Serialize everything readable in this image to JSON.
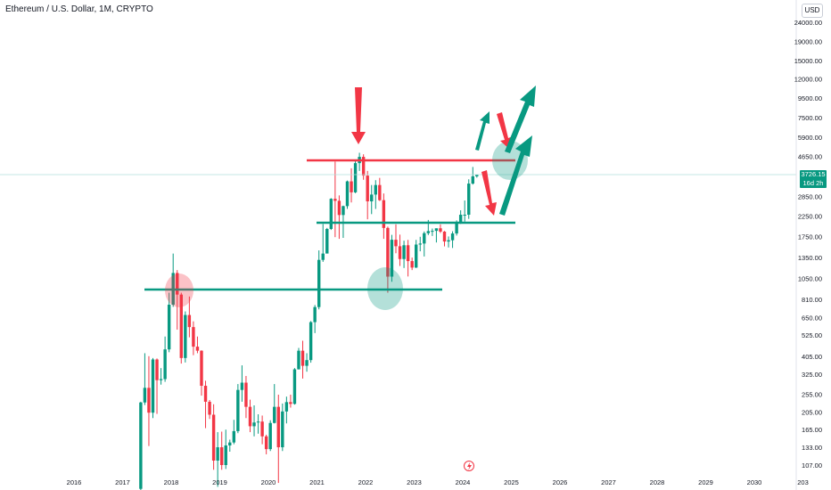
{
  "header": {
    "title": "Ethereum / U.S. Dollar, 1M, CRYPTO",
    "currency": "USD"
  },
  "price_tag": {
    "price": "3726.15",
    "countdown": "16d 2h"
  },
  "colors": {
    "up": "#089981",
    "down": "#f23645",
    "grid_line": "#2a8a8a",
    "axis_text": "#131722"
  },
  "chart_data": {
    "type": "candlestick",
    "title": "Ethereum / U.S. Dollar, 1M, CRYPTO",
    "y_scale": "log",
    "y_ticks": [
      "24000.00",
      "19000.00",
      "15000.00",
      "12000.00",
      "9500.00",
      "7500.00",
      "5900.00",
      "4650.00",
      "2850.00",
      "2250.00",
      "1750.00",
      "1350.00",
      "1050.00",
      "810.00",
      "650.00",
      "525.00",
      "405.00",
      "325.00",
      "255.00",
      "205.00",
      "165.00",
      "133.00",
      "107.00"
    ],
    "x_ticks": [
      "2016",
      "2017",
      "2018",
      "2019",
      "2020",
      "2021",
      "2022",
      "2023",
      "2024",
      "2025",
      "2026",
      "2027",
      "2028",
      "2029",
      "2030",
      "203"
    ],
    "ohlc": [
      {
        "t": "2017-05",
        "o": 80,
        "h": 232,
        "l": 78,
        "c": 230
      },
      {
        "t": "2017-06",
        "o": 230,
        "h": 420,
        "l": 223,
        "c": 275
      },
      {
        "t": "2017-07",
        "o": 275,
        "h": 405,
        "l": 135,
        "c": 203
      },
      {
        "t": "2017-08",
        "o": 203,
        "h": 396,
        "l": 190,
        "c": 389
      },
      {
        "t": "2017-09",
        "o": 389,
        "h": 394,
        "l": 200,
        "c": 302
      },
      {
        "t": "2017-10",
        "o": 302,
        "h": 350,
        "l": 286,
        "c": 306
      },
      {
        "t": "2017-11",
        "o": 306,
        "h": 515,
        "l": 296,
        "c": 440
      },
      {
        "t": "2017-12",
        "o": 440,
        "h": 880,
        "l": 425,
        "c": 760
      },
      {
        "t": "2018-01",
        "o": 760,
        "h": 1420,
        "l": 740,
        "c": 1120
      },
      {
        "t": "2018-02",
        "o": 1120,
        "h": 1160,
        "l": 560,
        "c": 860
      },
      {
        "t": "2018-03",
        "o": 860,
        "h": 880,
        "l": 370,
        "c": 396
      },
      {
        "t": "2018-04",
        "o": 396,
        "h": 700,
        "l": 375,
        "c": 670
      },
      {
        "t": "2018-05",
        "o": 670,
        "h": 840,
        "l": 510,
        "c": 578
      },
      {
        "t": "2018-06",
        "o": 578,
        "h": 620,
        "l": 410,
        "c": 455
      },
      {
        "t": "2018-07",
        "o": 455,
        "h": 515,
        "l": 420,
        "c": 433
      },
      {
        "t": "2018-08",
        "o": 433,
        "h": 435,
        "l": 250,
        "c": 282
      },
      {
        "t": "2018-09",
        "o": 282,
        "h": 300,
        "l": 168,
        "c": 232
      },
      {
        "t": "2018-10",
        "o": 232,
        "h": 237,
        "l": 188,
        "c": 198
      },
      {
        "t": "2018-11",
        "o": 198,
        "h": 225,
        "l": 101,
        "c": 113
      },
      {
        "t": "2018-12",
        "o": 113,
        "h": 160,
        "l": 82,
        "c": 133
      },
      {
        "t": "2019-01",
        "o": 133,
        "h": 161,
        "l": 101,
        "c": 107
      },
      {
        "t": "2019-02",
        "o": 107,
        "h": 165,
        "l": 102,
        "c": 136
      },
      {
        "t": "2019-03",
        "o": 136,
        "h": 146,
        "l": 126,
        "c": 141
      },
      {
        "t": "2019-04",
        "o": 141,
        "h": 186,
        "l": 138,
        "c": 162
      },
      {
        "t": "2019-05",
        "o": 162,
        "h": 288,
        "l": 158,
        "c": 268
      },
      {
        "t": "2019-06",
        "o": 268,
        "h": 362,
        "l": 232,
        "c": 293
      },
      {
        "t": "2019-07",
        "o": 293,
        "h": 318,
        "l": 190,
        "c": 218
      },
      {
        "t": "2019-08",
        "o": 218,
        "h": 238,
        "l": 160,
        "c": 172
      },
      {
        "t": "2019-09",
        "o": 172,
        "h": 222,
        "l": 152,
        "c": 180
      },
      {
        "t": "2019-10",
        "o": 180,
        "h": 199,
        "l": 157,
        "c": 182
      },
      {
        "t": "2019-11",
        "o": 182,
        "h": 196,
        "l": 138,
        "c": 152
      },
      {
        "t": "2019-12",
        "o": 152,
        "h": 155,
        "l": 122,
        "c": 130
      },
      {
        "t": "2020-01",
        "o": 130,
        "h": 185,
        "l": 127,
        "c": 179
      },
      {
        "t": "2020-02",
        "o": 179,
        "h": 288,
        "l": 178,
        "c": 218
      },
      {
        "t": "2020-03",
        "o": 218,
        "h": 253,
        "l": 86,
        "c": 133
      },
      {
        "t": "2020-04",
        "o": 133,
        "h": 227,
        "l": 127,
        "c": 206
      },
      {
        "t": "2020-05",
        "o": 206,
        "h": 247,
        "l": 178,
        "c": 231
      },
      {
        "t": "2020-06",
        "o": 231,
        "h": 253,
        "l": 216,
        "c": 226
      },
      {
        "t": "2020-07",
        "o": 226,
        "h": 350,
        "l": 224,
        "c": 345
      },
      {
        "t": "2020-08",
        "o": 345,
        "h": 448,
        "l": 344,
        "c": 433
      },
      {
        "t": "2020-09",
        "o": 433,
        "h": 489,
        "l": 308,
        "c": 360
      },
      {
        "t": "2020-10",
        "o": 360,
        "h": 420,
        "l": 335,
        "c": 386
      },
      {
        "t": "2020-11",
        "o": 386,
        "h": 622,
        "l": 374,
        "c": 614
      },
      {
        "t": "2020-12",
        "o": 614,
        "h": 757,
        "l": 537,
        "c": 738
      },
      {
        "t": "2021-01",
        "o": 738,
        "h": 1476,
        "l": 718,
        "c": 1314
      },
      {
        "t": "2021-02",
        "o": 1314,
        "h": 2036,
        "l": 1283,
        "c": 1420
      },
      {
        "t": "2021-03",
        "o": 1420,
        "h": 1943,
        "l": 1437,
        "c": 1918
      },
      {
        "t": "2021-04",
        "o": 1918,
        "h": 2795,
        "l": 1895,
        "c": 2773
      },
      {
        "t": "2021-05",
        "o": 2773,
        "h": 4372,
        "l": 1735,
        "c": 2706
      },
      {
        "t": "2021-06",
        "o": 2706,
        "h": 2891,
        "l": 1700,
        "c": 2275
      },
      {
        "t": "2021-07",
        "o": 2275,
        "h": 2551,
        "l": 1720,
        "c": 2536
      },
      {
        "t": "2021-08",
        "o": 2536,
        "h": 3466,
        "l": 2452,
        "c": 3433
      },
      {
        "t": "2021-09",
        "o": 3433,
        "h": 4027,
        "l": 2652,
        "c": 3001
      },
      {
        "t": "2021-10",
        "o": 3001,
        "h": 4460,
        "l": 2970,
        "c": 4289
      },
      {
        "t": "2021-11",
        "o": 4289,
        "h": 4868,
        "l": 3900,
        "c": 4631
      },
      {
        "t": "2021-12",
        "o": 4631,
        "h": 4778,
        "l": 3500,
        "c": 3683
      },
      {
        "t": "2022-01",
        "o": 3683,
        "h": 3900,
        "l": 2159,
        "c": 2688
      },
      {
        "t": "2022-02",
        "o": 2688,
        "h": 3282,
        "l": 2300,
        "c": 2920
      },
      {
        "t": "2022-03",
        "o": 2920,
        "h": 3483,
        "l": 2450,
        "c": 3282
      },
      {
        "t": "2022-04",
        "o": 3282,
        "h": 3581,
        "l": 2700,
        "c": 2727
      },
      {
        "t": "2022-05",
        "o": 2727,
        "h": 2960,
        "l": 1700,
        "c": 1942
      },
      {
        "t": "2022-06",
        "o": 1942,
        "h": 1974,
        "l": 880,
        "c": 1071
      },
      {
        "t": "2022-07",
        "o": 1071,
        "h": 1785,
        "l": 1006,
        "c": 1681
      },
      {
        "t": "2022-08",
        "o": 1681,
        "h": 2030,
        "l": 1425,
        "c": 1553
      },
      {
        "t": "2022-09",
        "o": 1553,
        "h": 1790,
        "l": 1220,
        "c": 1328
      },
      {
        "t": "2022-10",
        "o": 1328,
        "h": 1662,
        "l": 1190,
        "c": 1572
      },
      {
        "t": "2022-11",
        "o": 1572,
        "h": 1678,
        "l": 1073,
        "c": 1295
      },
      {
        "t": "2022-12",
        "o": 1295,
        "h": 1352,
        "l": 1160,
        "c": 1196
      },
      {
        "t": "2023-01",
        "o": 1196,
        "h": 1678,
        "l": 1190,
        "c": 1585
      },
      {
        "t": "2023-02",
        "o": 1585,
        "h": 1743,
        "l": 1460,
        "c": 1605
      },
      {
        "t": "2023-03",
        "o": 1605,
        "h": 1860,
        "l": 1370,
        "c": 1821
      },
      {
        "t": "2023-04",
        "o": 1821,
        "h": 2142,
        "l": 1780,
        "c": 1869
      },
      {
        "t": "2023-05",
        "o": 1869,
        "h": 1928,
        "l": 1760,
        "c": 1874
      },
      {
        "t": "2023-06",
        "o": 1874,
        "h": 1931,
        "l": 1626,
        "c": 1934
      },
      {
        "t": "2023-07",
        "o": 1934,
        "h": 2030,
        "l": 1825,
        "c": 1857
      },
      {
        "t": "2023-08",
        "o": 1857,
        "h": 1872,
        "l": 1550,
        "c": 1645
      },
      {
        "t": "2023-09",
        "o": 1645,
        "h": 1750,
        "l": 1530,
        "c": 1671
      },
      {
        "t": "2023-10",
        "o": 1671,
        "h": 1865,
        "l": 1520,
        "c": 1815
      },
      {
        "t": "2023-11",
        "o": 1815,
        "h": 2130,
        "l": 1770,
        "c": 2052
      },
      {
        "t": "2023-12",
        "o": 2052,
        "h": 2410,
        "l": 2040,
        "c": 2282
      },
      {
        "t": "2024-01",
        "o": 2282,
        "h": 2717,
        "l": 2100,
        "c": 2283
      },
      {
        "t": "2024-02",
        "o": 2283,
        "h": 3520,
        "l": 2170,
        "c": 3340
      },
      {
        "t": "2024-03",
        "o": 3340,
        "h": 4093,
        "l": 3300,
        "c": 3650
      },
      {
        "t": "2024-04",
        "o": 3650,
        "h": 3730,
        "l": 3590,
        "c": 3726
      }
    ]
  }
}
